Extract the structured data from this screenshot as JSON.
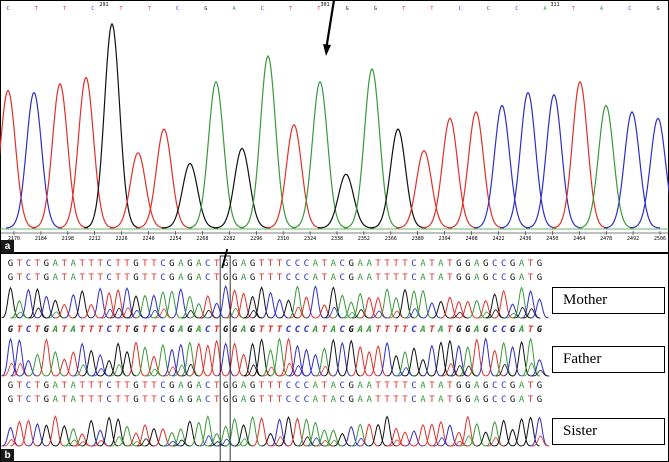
{
  "chart_data": [
    {
      "panel": "a",
      "type": "line",
      "x_ticks": [
        "2170",
        "2184",
        "2198",
        "2212",
        "2226",
        "2240",
        "2254",
        "2268",
        "2282",
        "2296",
        "2310",
        "2324",
        "2338",
        "2352",
        "2366",
        "2380",
        "2394",
        "2408",
        "2422",
        "2436",
        "2450",
        "2464",
        "2478",
        "2492",
        "2506"
      ],
      "position_marks": [
        "291",
        "301",
        "311"
      ],
      "bases": [
        "C",
        "T",
        "T",
        "C",
        "T",
        "T",
        "C",
        "G",
        "A",
        "C",
        "T",
        "T",
        "G",
        "G",
        "T",
        "T",
        "C",
        "C",
        "C",
        "A",
        "T",
        "A",
        "C",
        "G"
      ],
      "peaks": [
        {
          "base": "T",
          "height": 0.64
        },
        {
          "base": "C",
          "height": 0.63
        },
        {
          "base": "T",
          "height": 0.67
        },
        {
          "base": "T",
          "height": 0.7
        },
        {
          "base": "G",
          "height": 0.95
        },
        {
          "base": "T",
          "height": 0.35
        },
        {
          "base": "T",
          "height": 0.46
        },
        {
          "base": "G",
          "height": 0.3
        },
        {
          "base": "A",
          "height": 0.68
        },
        {
          "base": "G",
          "height": 0.37
        },
        {
          "base": "A",
          "height": 0.8
        },
        {
          "base": "T",
          "height": 0.48
        },
        {
          "base": "A",
          "height": 0.68
        },
        {
          "base": "G",
          "height": 0.25
        },
        {
          "base": "A",
          "height": 0.74
        },
        {
          "base": "G",
          "height": 0.46
        },
        {
          "base": "T",
          "height": 0.36
        },
        {
          "base": "T",
          "height": 0.51
        },
        {
          "base": "T",
          "height": 0.54
        },
        {
          "base": "C",
          "height": 0.57
        },
        {
          "base": "C",
          "height": 0.63
        },
        {
          "base": "C",
          "height": 0.62
        },
        {
          "base": "T",
          "height": 0.68
        },
        {
          "base": "A",
          "height": 0.57
        },
        {
          "base": "C",
          "height": 0.54
        },
        {
          "base": "C",
          "height": 0.51
        }
      ],
      "arrow": {
        "target_peak": 12,
        "direction": "down"
      },
      "colors": {
        "A": "#3a9a3a",
        "C": "#2f2fc8",
        "G": "#111111",
        "T": "#e0302a"
      }
    },
    {
      "panel": "b",
      "type": "line",
      "tracks": [
        {
          "label": "Mother",
          "sequences": [
            "GTCTGATATTTCTTGTTCGAGACTGGAGTTTCCCATACGAATTTTCATATGGAGCCGATG",
            "GTCTGATATTTCTTGTTCGAGACTGGAGTTTCCCATACGAATTTTCATATGGAGCCGATG"
          ]
        },
        {
          "label": "Father",
          "sequences": [
            "GTCTGATATTTCTTGTTCGAGACTGGAGTTTCCCATACGAATTTTCATATGGAGCCGATG"
          ]
        },
        {
          "label": "Sister",
          "sequences": [
            "GTCTGATATTTCTTGTTCGAGACTGGAGTTTCCCATACGAATTTTCATATGGAGCCGATG",
            "GTCTGATATTTCTTGTTCGAGACTGGAGTTTCCCATACGAATTTTCATATGGAGCCGATG"
          ]
        }
      ],
      "highlight_index": 24,
      "arrow": {
        "target_index": 24,
        "direction": "down"
      }
    }
  ],
  "panel_labels": {
    "a": "a",
    "b": "b"
  },
  "legend": {
    "mother": "Mother",
    "father": "Father",
    "sister": "Sister"
  }
}
